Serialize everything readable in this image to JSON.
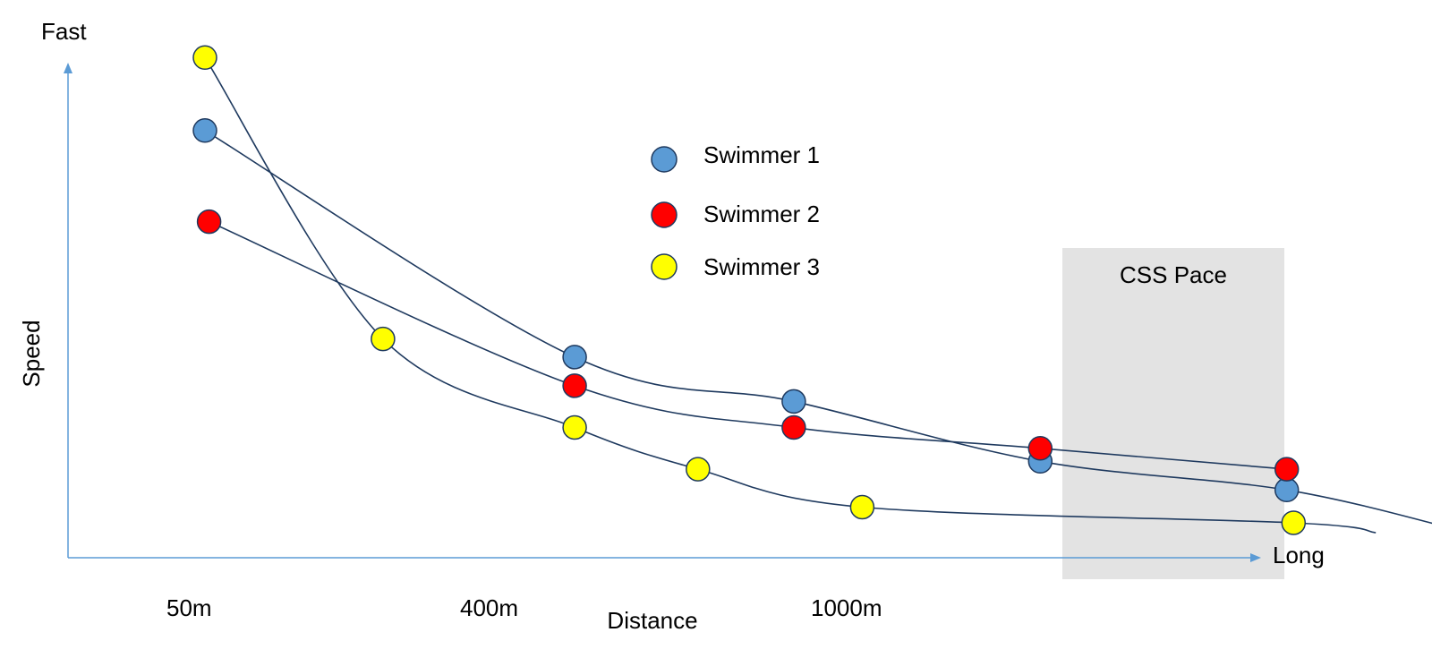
{
  "chart_data": {
    "type": "scatter",
    "axis_end_labels": {
      "y_top": "Fast",
      "x_right": "Long"
    },
    "xlabel": "Distance",
    "ylabel": "Speed",
    "x_tick_labels": [
      "50m",
      "400m",
      "1000m"
    ],
    "highlight_region": {
      "label": "CSS Pace",
      "color": "#e3e3e3"
    },
    "axis_color": "#5b9bd5",
    "curve_color": "#1f3a5f",
    "series": [
      {
        "name": "Swimmer 1",
        "color": "#5b9bd5",
        "points": [
          [
            1,
            8.2
          ],
          [
            3.7,
            3.85
          ],
          [
            5.3,
            3.0
          ],
          [
            7.1,
            1.85
          ],
          [
            8.9,
            1.3
          ]
        ],
        "curve_end": [
          10.2,
          0.5
        ]
      },
      {
        "name": "Swimmer 2",
        "color": "#ff0000",
        "points": [
          [
            1.03,
            6.45
          ],
          [
            3.7,
            3.3
          ],
          [
            5.3,
            2.5
          ],
          [
            7.1,
            2.1
          ],
          [
            8.9,
            1.7
          ]
        ]
      },
      {
        "name": "Swimmer 3",
        "color": "#ffff00",
        "points": [
          [
            1,
            9.6
          ],
          [
            2.3,
            4.2
          ],
          [
            3.7,
            2.5
          ],
          [
            4.6,
            1.7
          ],
          [
            5.8,
            0.97
          ],
          [
            8.95,
            0.67
          ]
        ],
        "curve_end": [
          9.55,
          0.48
        ]
      }
    ],
    "xlim": [
      0,
      10
    ],
    "ylim": [
      0,
      10
    ]
  }
}
